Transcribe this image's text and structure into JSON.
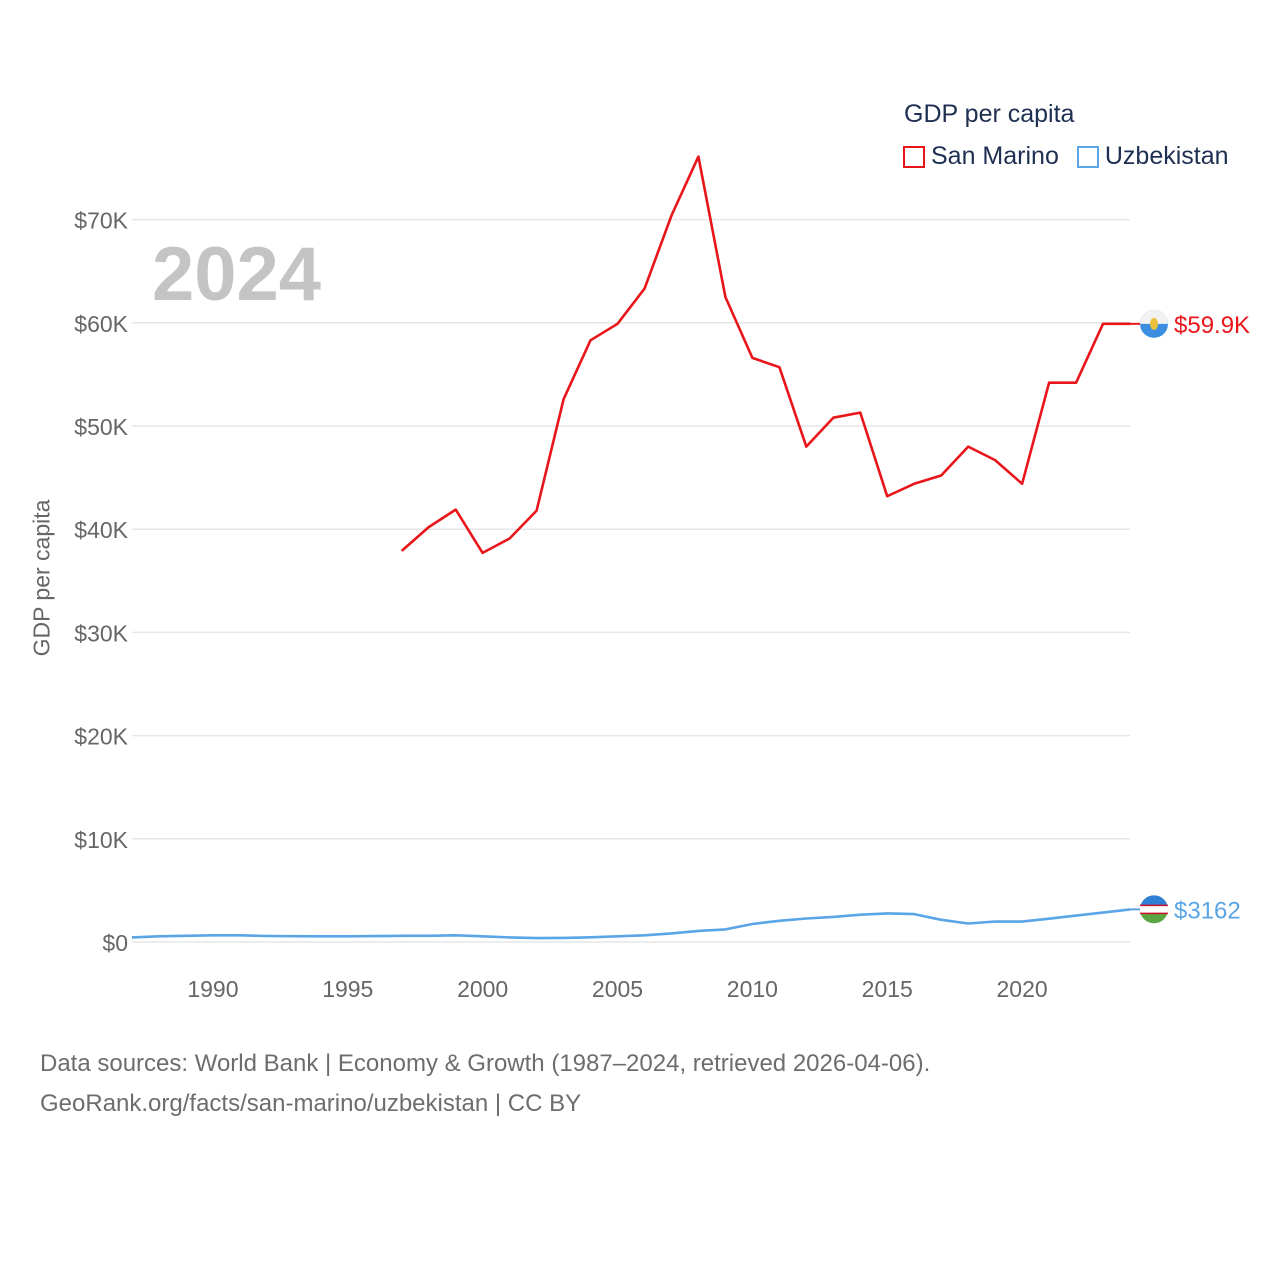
{
  "chart_data": {
    "type": "line",
    "title": "GDP per capita",
    "year_label": "2024",
    "ylabel": "GDP per capita",
    "xlabel": "",
    "xlim": [
      1987,
      2024
    ],
    "ylim": [
      0,
      75000
    ],
    "x_ticks": [
      1990,
      1995,
      2000,
      2005,
      2010,
      2015,
      2020
    ],
    "y_ticks": [
      {
        "value": 0,
        "label": "$0"
      },
      {
        "value": 10000,
        "label": "$10K"
      },
      {
        "value": 20000,
        "label": "$20K"
      },
      {
        "value": 30000,
        "label": "$30K"
      },
      {
        "value": 40000,
        "label": "$40K"
      },
      {
        "value": 50000,
        "label": "$50K"
      },
      {
        "value": 60000,
        "label": "$60K"
      },
      {
        "value": 70000,
        "label": "$70K"
      }
    ],
    "grid": true,
    "legend_position": "top-right",
    "series": [
      {
        "name": "San Marino",
        "color": "#e8161b",
        "end_label": "$59.9K",
        "x": [
          1997,
          1998,
          1999,
          2000,
          2001,
          2002,
          2003,
          2004,
          2005,
          2006,
          2007,
          2008,
          2009,
          2010,
          2011,
          2012,
          2013,
          2014,
          2015,
          2016,
          2017,
          2018,
          2019,
          2020,
          2021,
          2022,
          2023,
          2024
        ],
        "values": [
          37900,
          40200,
          41900,
          37700,
          39100,
          41800,
          52600,
          58300,
          59900,
          63300,
          70400,
          76100,
          62500,
          56600,
          55700,
          48000,
          50800,
          51300,
          43200,
          44400,
          45200,
          48000,
          46700,
          44400,
          54200,
          54200,
          59900,
          59900
        ]
      },
      {
        "name": "Uzbekistan",
        "color": "#5aa5e6",
        "end_label": "$3162",
        "x": [
          1987,
          1988,
          1989,
          1990,
          1991,
          1992,
          1993,
          1994,
          1995,
          1996,
          1997,
          1998,
          1999,
          2000,
          2001,
          2002,
          2003,
          2004,
          2005,
          2006,
          2007,
          2008,
          2009,
          2010,
          2011,
          2012,
          2013,
          2014,
          2015,
          2016,
          2017,
          2018,
          2019,
          2020,
          2021,
          2022,
          2023,
          2024
        ],
        "values": [
          450,
          550,
          600,
          650,
          650,
          580,
          560,
          550,
          550,
          570,
          600,
          600,
          650,
          550,
          450,
          380,
          400,
          460,
          550,
          650,
          830,
          1080,
          1220,
          1740,
          2050,
          2280,
          2430,
          2650,
          2770,
          2700,
          2150,
          1790,
          1990,
          1980,
          2260,
          2560,
          2850,
          3162
        ]
      }
    ],
    "footer_line1": "Data sources: World Bank | Economy & Growth (1987–2024, retrieved 2026-04-06).",
    "footer_line2": "GeoRank.org/facts/san-marino/uzbekistan | CC BY"
  }
}
